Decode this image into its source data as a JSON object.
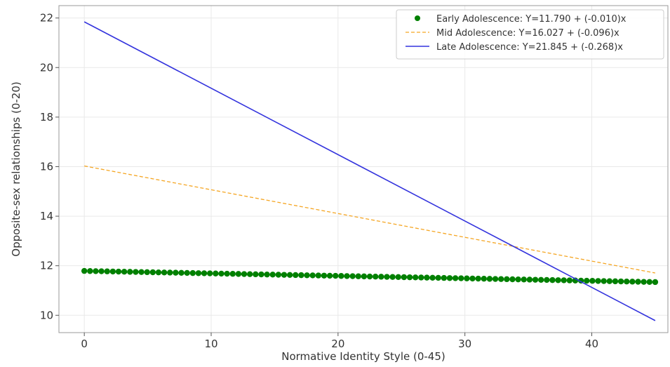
{
  "chart_data": {
    "type": "line",
    "xlabel": "Normative Identity Style (0-45)",
    "ylabel": "Opposite-sex relationships (0-20)",
    "xlim": [
      -2,
      46
    ],
    "ylim": [
      9.3,
      22.5
    ],
    "x_ticks": [
      0,
      10,
      20,
      30,
      40
    ],
    "y_ticks": [
      10,
      12,
      14,
      16,
      18,
      20,
      22
    ],
    "grid": true,
    "legend_position": "top-right",
    "x_range": [
      0,
      45
    ],
    "series": [
      {
        "name": "Early Adolescence: Y=11.790 + (-0.010)x",
        "intercept": 11.79,
        "slope": -0.01,
        "style": "dots",
        "color": "#008000"
      },
      {
        "name": "Mid Adolescence: Y=16.027 + (-0.096)x",
        "intercept": 16.027,
        "slope": -0.096,
        "style": "dashed",
        "color": "#f5a623"
      },
      {
        "name": "Late Adolescence: Y=21.845 + (-0.268)x",
        "intercept": 21.845,
        "slope": -0.268,
        "style": "solid",
        "color": "#3333dd"
      }
    ]
  }
}
